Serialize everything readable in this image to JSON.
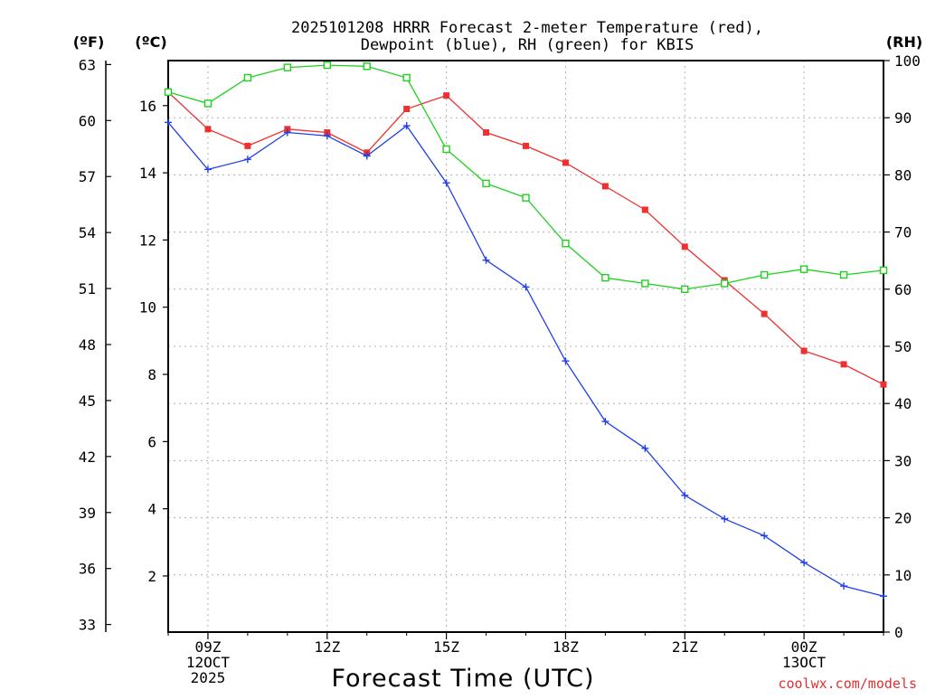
{
  "chart_data": {
    "type": "line",
    "title_lines": [
      "2025101208 HRRR Forecast 2-meter Temperature (red),",
      "Dewpoint (blue), RH (green) for KBIS"
    ],
    "xlabel": "Forecast Time (UTC)",
    "credit": "coolwx.com/models",
    "units": {
      "fahrenheit": "(ºF)",
      "celsius": "(ºC)",
      "rh": "(RH)"
    },
    "x_hours": [
      8,
      9,
      10,
      11,
      12,
      13,
      14,
      15,
      16,
      17,
      18,
      19,
      20,
      21,
      22,
      23,
      24,
      25,
      26
    ],
    "xlim": [
      8,
      26
    ],
    "x_ticks": [
      {
        "hour": 9,
        "lines": [
          "09Z",
          "12OCT",
          "2025"
        ]
      },
      {
        "hour": 12,
        "lines": [
          "12Z"
        ]
      },
      {
        "hour": 15,
        "lines": [
          "15Z"
        ]
      },
      {
        "hour": 18,
        "lines": [
          "18Z"
        ]
      },
      {
        "hour": 21,
        "lines": [
          "21Z"
        ]
      },
      {
        "hour": 24,
        "lines": [
          "00Z",
          "13OCT"
        ]
      }
    ],
    "x_minor_hours": [
      8,
      10,
      11,
      13,
      14,
      16,
      17,
      19,
      20,
      22,
      23,
      25,
      26
    ],
    "celsius_axis": {
      "ylim": [
        0.33,
        17.34
      ],
      "ticks": [
        "2",
        "4",
        "6",
        "8",
        "10",
        "12",
        "14",
        "16"
      ]
    },
    "fahrenheit_axis": {
      "ticks": [
        "33",
        "36",
        "39",
        "42",
        "45",
        "48",
        "51",
        "54",
        "57",
        "60",
        "63"
      ]
    },
    "rh_axis": {
      "ylim": [
        0,
        100
      ],
      "ticks": [
        "0",
        "10",
        "20",
        "30",
        "40",
        "50",
        "60",
        "70",
        "80",
        "90",
        "100"
      ]
    },
    "series": [
      {
        "name": "Temperature",
        "axis": "celsius",
        "color": "#ee3030",
        "marker": "filled-square",
        "values": [
          16.4,
          15.3,
          14.8,
          15.3,
          15.2,
          14.6,
          15.9,
          16.3,
          15.2,
          14.8,
          14.3,
          13.6,
          12.9,
          11.8,
          10.8,
          9.8,
          8.7,
          8.3,
          7.7
        ]
      },
      {
        "name": "Dewpoint",
        "axis": "celsius",
        "color": "#2040e8",
        "marker": "plus",
        "values": [
          15.5,
          14.1,
          14.4,
          15.2,
          15.1,
          14.5,
          15.4,
          13.7,
          11.4,
          10.6,
          8.4,
          6.6,
          5.8,
          4.4,
          3.7,
          3.2,
          2.4,
          1.7,
          1.4
        ]
      },
      {
        "name": "RH",
        "axis": "rh",
        "color": "#20d020",
        "marker": "open-square",
        "values": [
          94.5,
          92.5,
          97.0,
          98.8,
          99.2,
          99.0,
          97.0,
          84.5,
          78.5,
          76.0,
          68.0,
          62.0,
          61.0,
          60.0,
          61.0,
          62.5,
          63.5,
          62.5,
          63.3
        ]
      }
    ]
  }
}
